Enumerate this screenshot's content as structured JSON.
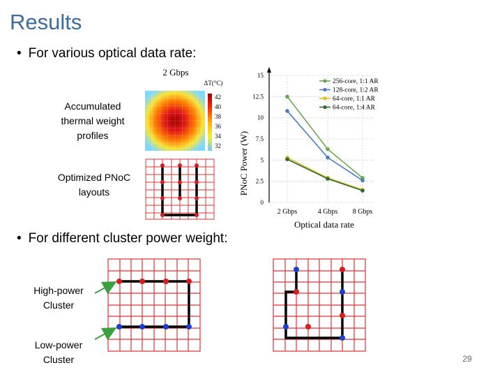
{
  "slide": {
    "title": "Results",
    "bullet1": "For various optical data rate:",
    "bullet2": "For different cluster power weight:",
    "bullet_marker": "•",
    "page_number": "29"
  },
  "labels": {
    "accumulated": "Accumulated thermal weight profiles",
    "optimized": "Optimized PNoC layouts",
    "high_power": "High-power Cluster",
    "low_power": "Low-power Cluster"
  },
  "heatmap": {
    "title": "2 Gbps",
    "colorbar_title": "ΔT(°C)",
    "colorbar_ticks": [
      "42",
      "40",
      "38",
      "36",
      "34",
      "32"
    ]
  },
  "colors": {
    "title": "#3c6c9c",
    "grid": "#e03030",
    "node_red": "#d81c1c",
    "node_blue": "#1a3fd4",
    "arrow": "#3aa040"
  },
  "chart_data": {
    "type": "line",
    "x": [
      "2 Gbps",
      "4 Gbps",
      "8 Gbps"
    ],
    "xlabel": "Optical data rate",
    "ylabel": "PNoC Power (W)",
    "ylim": [
      0,
      15
    ],
    "yticks": [
      "0",
      "2.5",
      "5",
      "7.5",
      "10",
      "12.5",
      "15"
    ],
    "grid": true,
    "legend_position": "top-right",
    "series": [
      {
        "name": "256-core, 1:1 AR",
        "color": "#6aa84f",
        "values": [
          12.5,
          6.3,
          2.9
        ]
      },
      {
        "name": "128-core, 1:2 AR",
        "color": "#4a7dc4",
        "values": [
          10.8,
          5.3,
          2.6
        ]
      },
      {
        "name": "64-core, 1:1 AR",
        "color": "#e0c020",
        "values": [
          5.3,
          2.9,
          1.5
        ]
      },
      {
        "name": "64-core, 1:4 AR",
        "color": "#2e6b30",
        "values": [
          5.1,
          2.8,
          1.4
        ]
      }
    ]
  }
}
